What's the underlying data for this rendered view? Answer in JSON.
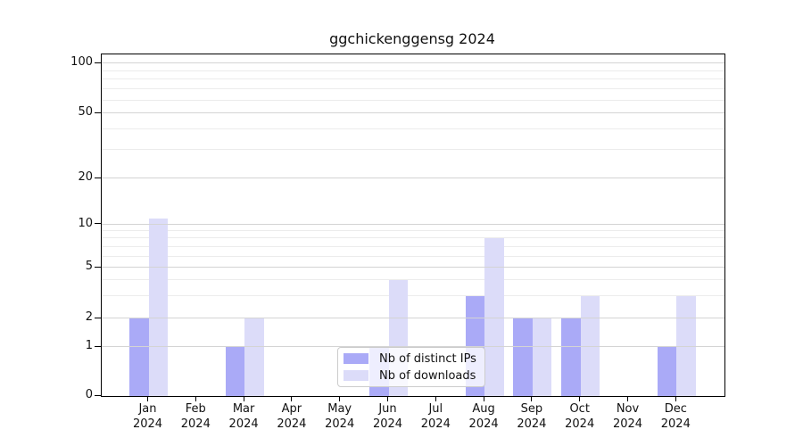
{
  "chart_data": {
    "type": "bar",
    "title": "ggchickenggensg 2024",
    "categories": [
      "Jan",
      "Feb",
      "Mar",
      "Apr",
      "May",
      "Jun",
      "Jul",
      "Aug",
      "Sep",
      "Oct",
      "Nov",
      "Dec"
    ],
    "category_year": "2024",
    "series": [
      {
        "name": "Nb of distinct IPs",
        "color": "#aaaaf7",
        "values": [
          2,
          0,
          1,
          0,
          0,
          1,
          0,
          3,
          2,
          2,
          0,
          1
        ]
      },
      {
        "name": "Nb of downloads",
        "color": "#dcdcf9",
        "values": [
          11,
          0,
          2,
          0,
          0,
          4,
          0,
          8,
          2,
          3,
          0,
          3
        ]
      }
    ],
    "xlabel": "",
    "ylabel": "",
    "yscale": "log-like (0 baseline, log above 1)",
    "yticks": [
      0,
      1,
      2,
      5,
      10,
      20,
      50,
      100
    ],
    "minor_gridlines": [
      3,
      4,
      6,
      7,
      8,
      9,
      30,
      40,
      60,
      70,
      80,
      90
    ],
    "ylim": [
      0,
      115
    ],
    "grid": true,
    "legend_position": "bottom-center"
  },
  "colors": {
    "major_grid": "#d4d4d4",
    "minor_grid": "#ececec",
    "axis": "#000000",
    "text": "#111111",
    "legend_border": "#cccccc"
  }
}
